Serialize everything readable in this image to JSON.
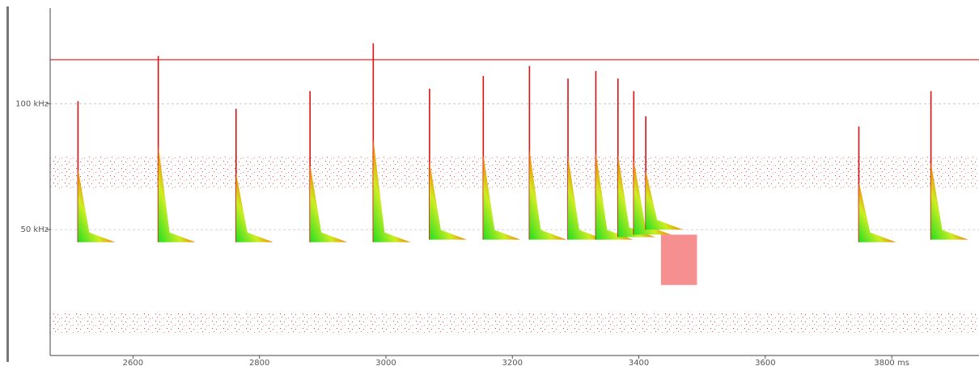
{
  "chart_data": {
    "type": "spectrogram",
    "xlim": [
      2469,
      3938
    ],
    "xticks": [
      2600,
      2800,
      3000,
      3200,
      3400,
      3600,
      {
        "value": 3800,
        "label": "3800 ms"
      }
    ],
    "ylim": [
      0,
      138
    ],
    "yticks": [
      {
        "value": 50,
        "label": "50 kHz"
      },
      {
        "value": 100,
        "label": "100 kHz"
      }
    ],
    "grid": true,
    "tone_khz": 117.5,
    "noise_bands": [
      [
        66,
        79
      ],
      [
        9,
        17
      ]
    ],
    "calls": {
      "x": [
        2513,
        2640,
        2763,
        2880,
        2980,
        3069,
        3154,
        3227,
        3288,
        3332,
        3367,
        3392,
        3411,
        3748,
        3862
      ],
      "high": [
        101,
        119,
        98,
        105,
        124,
        106,
        111,
        115,
        110,
        113,
        110,
        105,
        95,
        91,
        105
      ],
      "low": [
        45,
        45,
        45,
        45,
        45,
        46,
        46,
        46,
        46,
        46,
        47,
        48,
        50,
        45,
        46
      ]
    },
    "buzz": {
      "x": [
        3435,
        3492
      ],
      "f": [
        28,
        48
      ]
    }
  }
}
